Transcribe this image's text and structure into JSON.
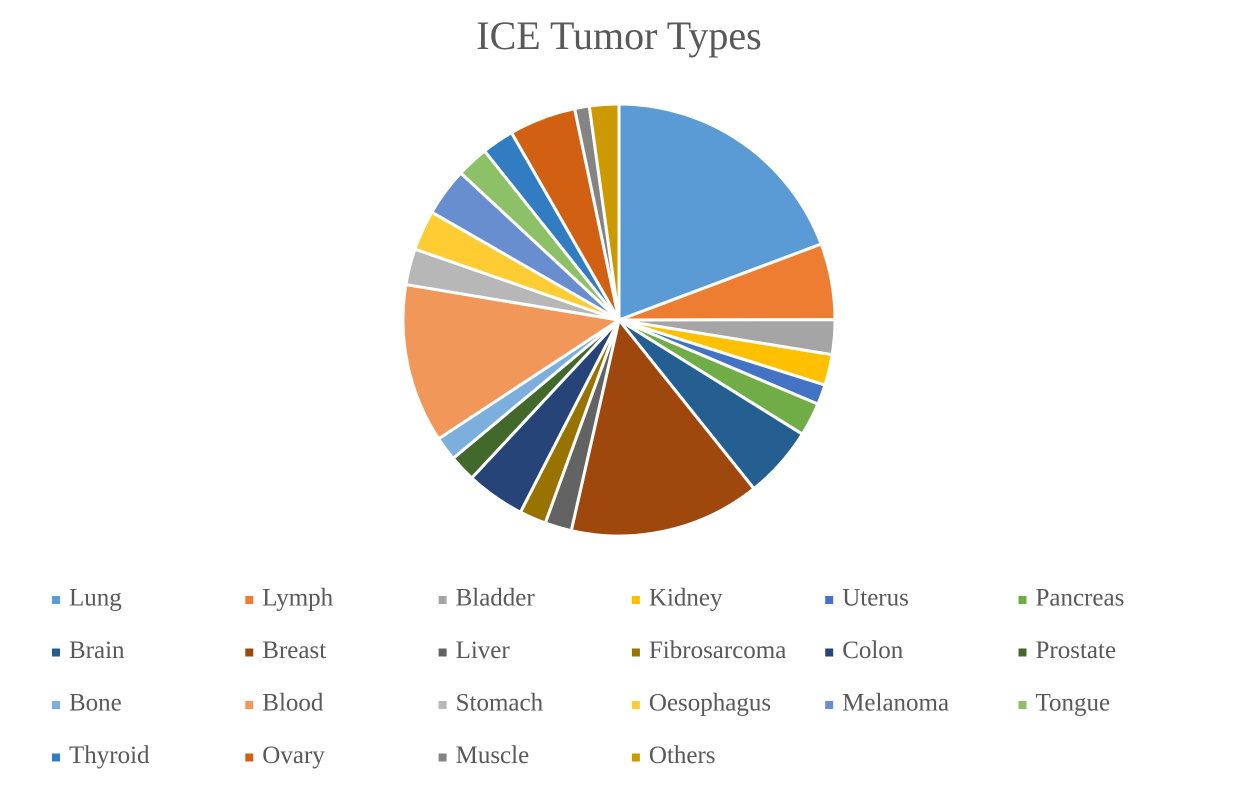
{
  "chart_data": {
    "type": "pie",
    "title": "ICE Tumor Types",
    "categories": [
      "Lung",
      "Lymph",
      "Bladder",
      "Kidney",
      "Uterus",
      "Pancreas",
      "Brain",
      "Breast",
      "Liver",
      "Fibrosarcoma",
      "Colon",
      "Prostate",
      "Bone",
      "Blood",
      "Stomach",
      "Oesophagus",
      "Melanoma",
      "Tongue",
      "Thyroid",
      "Ovary",
      "Muscle",
      "Others"
    ],
    "values": [
      19.3,
      5.7,
      2.6,
      2.3,
      1.5,
      2.5,
      5.4,
      14.3,
      2,
      2,
      4.4,
      2,
      1.8,
      11.9,
      2.7,
      3,
      3.6,
      2.4,
      2.4,
      5,
      1.1,
      2.2
    ],
    "colors": [
      "#5b9bd5",
      "#ed7d31",
      "#a5a5a5",
      "#ffc000",
      "#4472c4",
      "#70ad47",
      "#255e91",
      "#9e480e",
      "#636363",
      "#997300",
      "#264478",
      "#43682b",
      "#7cafdd",
      "#f1975a",
      "#b7b7b7",
      "#ffcd33",
      "#698ed0",
      "#8cc168",
      "#327dc2",
      "#d26012",
      "#848484",
      "#cc9a00"
    ],
    "legend": "bottom"
  }
}
